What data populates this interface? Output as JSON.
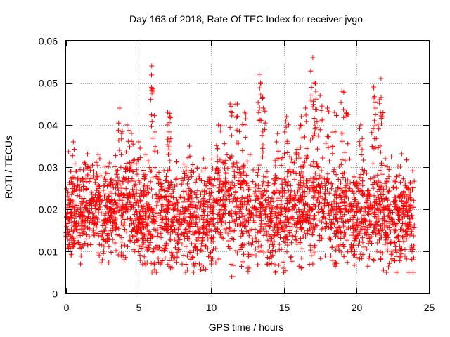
{
  "chart_data": {
    "type": "scatter",
    "title": "Day 163 of 2018, Rate Of TEC Index for receiver jvgo",
    "xlabel": "GPS time / hours",
    "ylabel": "ROTI / TECUs",
    "xlim": [
      0,
      25
    ],
    "ylim": [
      0,
      0.06
    ],
    "xticks": [
      "0",
      "5",
      "10",
      "15",
      "20",
      "25"
    ],
    "yticks": [
      "0",
      "0.01",
      "0.02",
      "0.03",
      "0.04",
      "0.05",
      "0.06"
    ],
    "grid": true,
    "marker": "+",
    "series_color": "#ff0000",
    "base_level": [
      [
        0.0,
        0.018
      ],
      [
        1.0,
        0.019
      ],
      [
        2.0,
        0.02
      ],
      [
        3.0,
        0.018
      ],
      [
        4.0,
        0.022
      ],
      [
        5.0,
        0.019
      ],
      [
        6.0,
        0.017
      ],
      [
        7.0,
        0.019
      ],
      [
        8.0,
        0.018
      ],
      [
        9.0,
        0.017
      ],
      [
        10.0,
        0.019
      ],
      [
        11.0,
        0.023
      ],
      [
        12.0,
        0.02
      ],
      [
        13.0,
        0.019
      ],
      [
        14.0,
        0.018
      ],
      [
        15.0,
        0.019
      ],
      [
        16.0,
        0.021
      ],
      [
        17.0,
        0.022
      ],
      [
        18.0,
        0.02
      ],
      [
        19.0,
        0.019
      ],
      [
        20.0,
        0.019
      ],
      [
        21.0,
        0.02
      ],
      [
        22.0,
        0.018
      ],
      [
        23.0,
        0.017
      ],
      [
        24.0,
        0.017
      ]
    ],
    "peaks": [
      [
        0.3,
        0.029
      ],
      [
        0.5,
        0.036
      ],
      [
        1.3,
        0.031
      ],
      [
        2.2,
        0.033
      ],
      [
        3.0,
        0.031
      ],
      [
        3.7,
        0.044
      ],
      [
        4.2,
        0.04
      ],
      [
        4.5,
        0.038
      ],
      [
        5.0,
        0.036
      ],
      [
        5.5,
        0.033
      ],
      [
        5.9,
        0.054
      ],
      [
        6.0,
        0.048
      ],
      [
        7.0,
        0.043
      ],
      [
        7.1,
        0.042
      ],
      [
        8.5,
        0.035
      ],
      [
        10.5,
        0.04
      ],
      [
        11.3,
        0.045
      ],
      [
        11.8,
        0.045
      ],
      [
        12.3,
        0.043
      ],
      [
        13.3,
        0.052
      ],
      [
        13.4,
        0.05
      ],
      [
        13.6,
        0.044
      ],
      [
        14.5,
        0.036
      ],
      [
        15.2,
        0.042
      ],
      [
        16.2,
        0.042
      ],
      [
        16.5,
        0.044
      ],
      [
        17.0,
        0.056
      ],
      [
        17.1,
        0.05
      ],
      [
        17.2,
        0.048
      ],
      [
        17.5,
        0.047
      ],
      [
        18.0,
        0.044
      ],
      [
        18.5,
        0.043
      ],
      [
        19.0,
        0.048
      ],
      [
        19.3,
        0.043
      ],
      [
        20.3,
        0.04
      ],
      [
        21.2,
        0.049
      ],
      [
        21.3,
        0.044
      ],
      [
        21.6,
        0.046
      ],
      [
        21.7,
        0.051
      ],
      [
        22.0,
        0.032
      ],
      [
        23.5,
        0.025
      ]
    ],
    "lows": [
      [
        1.0,
        0.007
      ],
      [
        2.5,
        0.008
      ],
      [
        4.0,
        0.008
      ],
      [
        6.5,
        0.007
      ],
      [
        7.2,
        0.006
      ],
      [
        8.8,
        0.007
      ],
      [
        10.0,
        0.007
      ],
      [
        11.5,
        0.004
      ],
      [
        12.5,
        0.006
      ],
      [
        14.0,
        0.007
      ],
      [
        15.0,
        0.005
      ],
      [
        16.2,
        0.006
      ],
      [
        17.0,
        0.007
      ],
      [
        18.5,
        0.007
      ],
      [
        19.8,
        0.009
      ],
      [
        22.8,
        0.005
      ],
      [
        23.9,
        0.008
      ]
    ]
  }
}
